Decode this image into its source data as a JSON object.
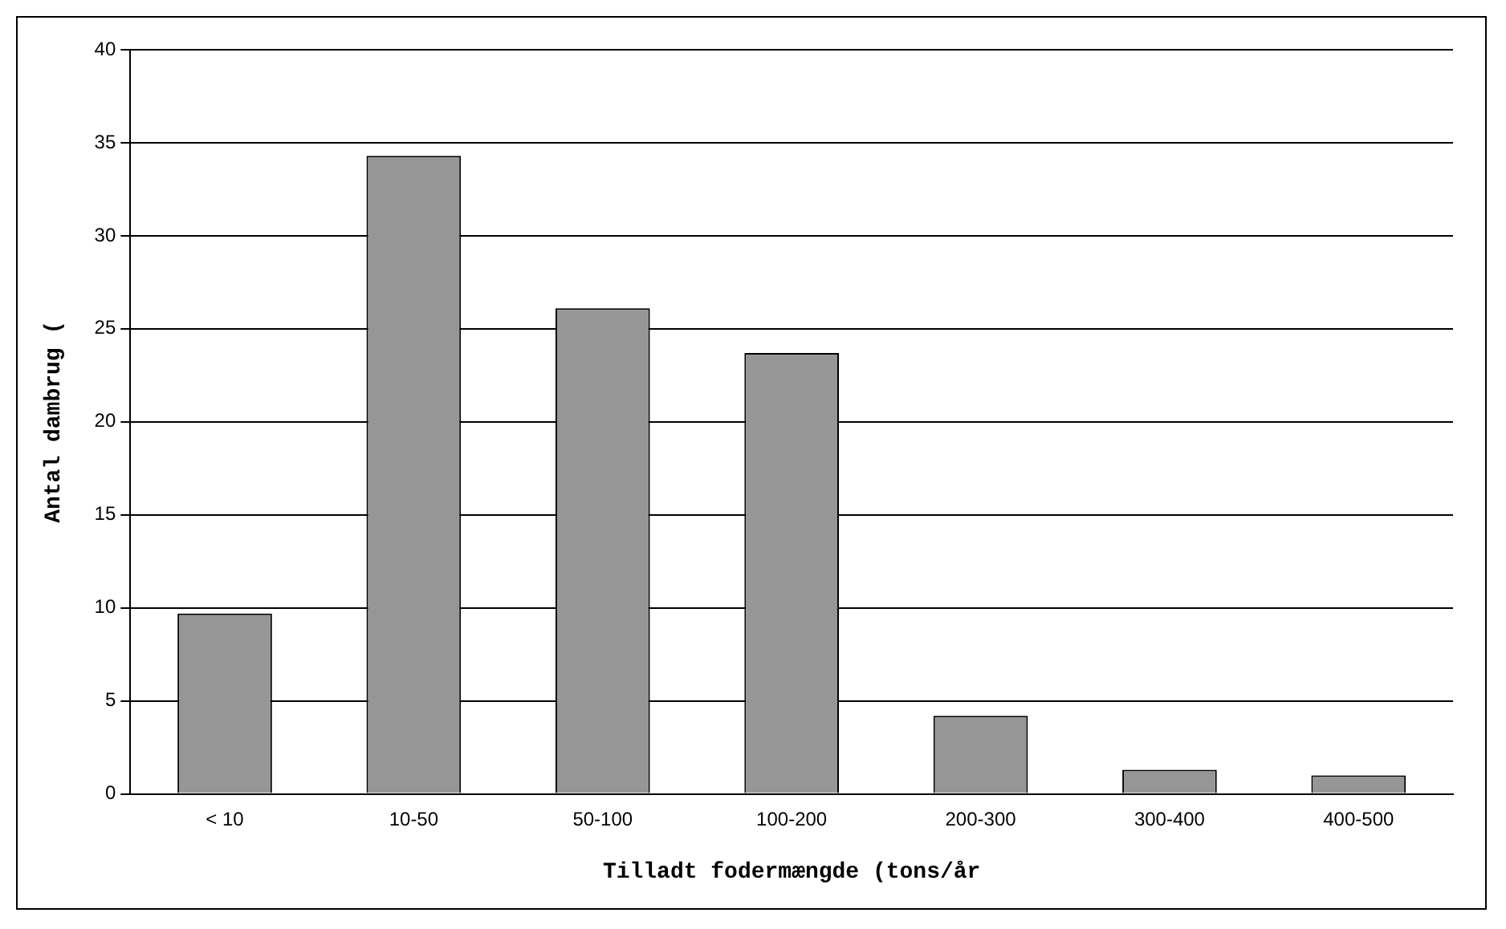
{
  "chart_data": {
    "type": "bar",
    "xlabel": "Tilladt fodermængde (tons/år",
    "ylabel": "Antal dambrug (",
    "categories": [
      "< 10",
      "10-50",
      "50-100",
      "100-200",
      "200-300",
      "300-400",
      "400-500"
    ],
    "values": [
      9.7,
      34.3,
      26.1,
      23.7,
      4.2,
      1.3,
      1.0
    ],
    "color": "#969696",
    "ylim": [
      0,
      40
    ],
    "yticks": [
      0,
      5,
      10,
      15,
      20,
      25,
      30,
      35,
      40
    ],
    "grid": "y",
    "legend": false
  }
}
